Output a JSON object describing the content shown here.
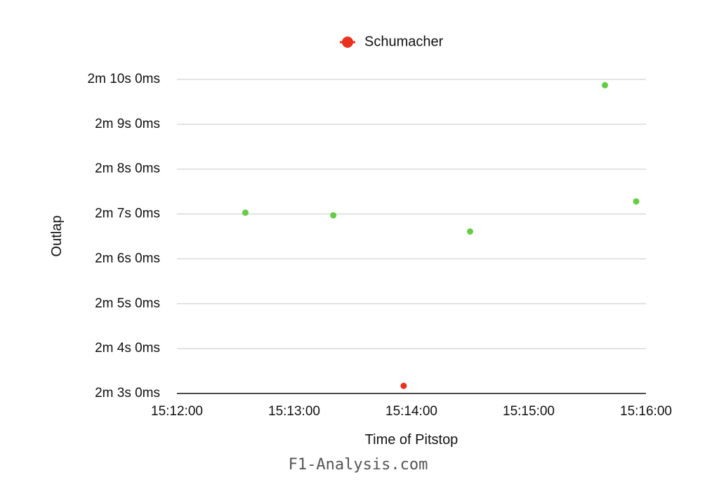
{
  "chart_data": {
    "type": "scatter",
    "xlabel": "Time of Pitstop",
    "ylabel": "Outlap",
    "x_ticks": [
      "15:12:00",
      "15:13:00",
      "15:14:00",
      "15:15:00",
      "15:16:00"
    ],
    "y_ticks": [
      "2m 3s 0ms",
      "2m 4s 0ms",
      "2m 5s 0ms",
      "2m 6s 0ms",
      "2m 7s 0ms",
      "2m 8s 0ms",
      "2m 9s 0ms",
      "2m 10s 0ms"
    ],
    "xlim": [
      "15:12:00",
      "15:16:00"
    ],
    "ylim": [
      123,
      130
    ],
    "y_unit": "seconds",
    "grid": true,
    "legend": {
      "position": "top-center",
      "entries": [
        {
          "name": "Schumacher",
          "color": "#e8321e"
        }
      ]
    },
    "series": [
      {
        "name": "Schumacher",
        "color": "#e8321e",
        "points": [
          {
            "x": "15:13:56",
            "y": 123.17
          }
        ]
      },
      {
        "color": "#66cc44",
        "points": [
          {
            "x": "15:12:35",
            "y": 127.03
          },
          {
            "x": "15:13:20",
            "y": 126.97
          },
          {
            "x": "15:14:30",
            "y": 126.61
          },
          {
            "x": "15:15:39",
            "y": 129.87
          },
          {
            "x": "15:15:55",
            "y": 127.28
          }
        ]
      }
    ]
  },
  "watermark": "F1-Analysis.com"
}
